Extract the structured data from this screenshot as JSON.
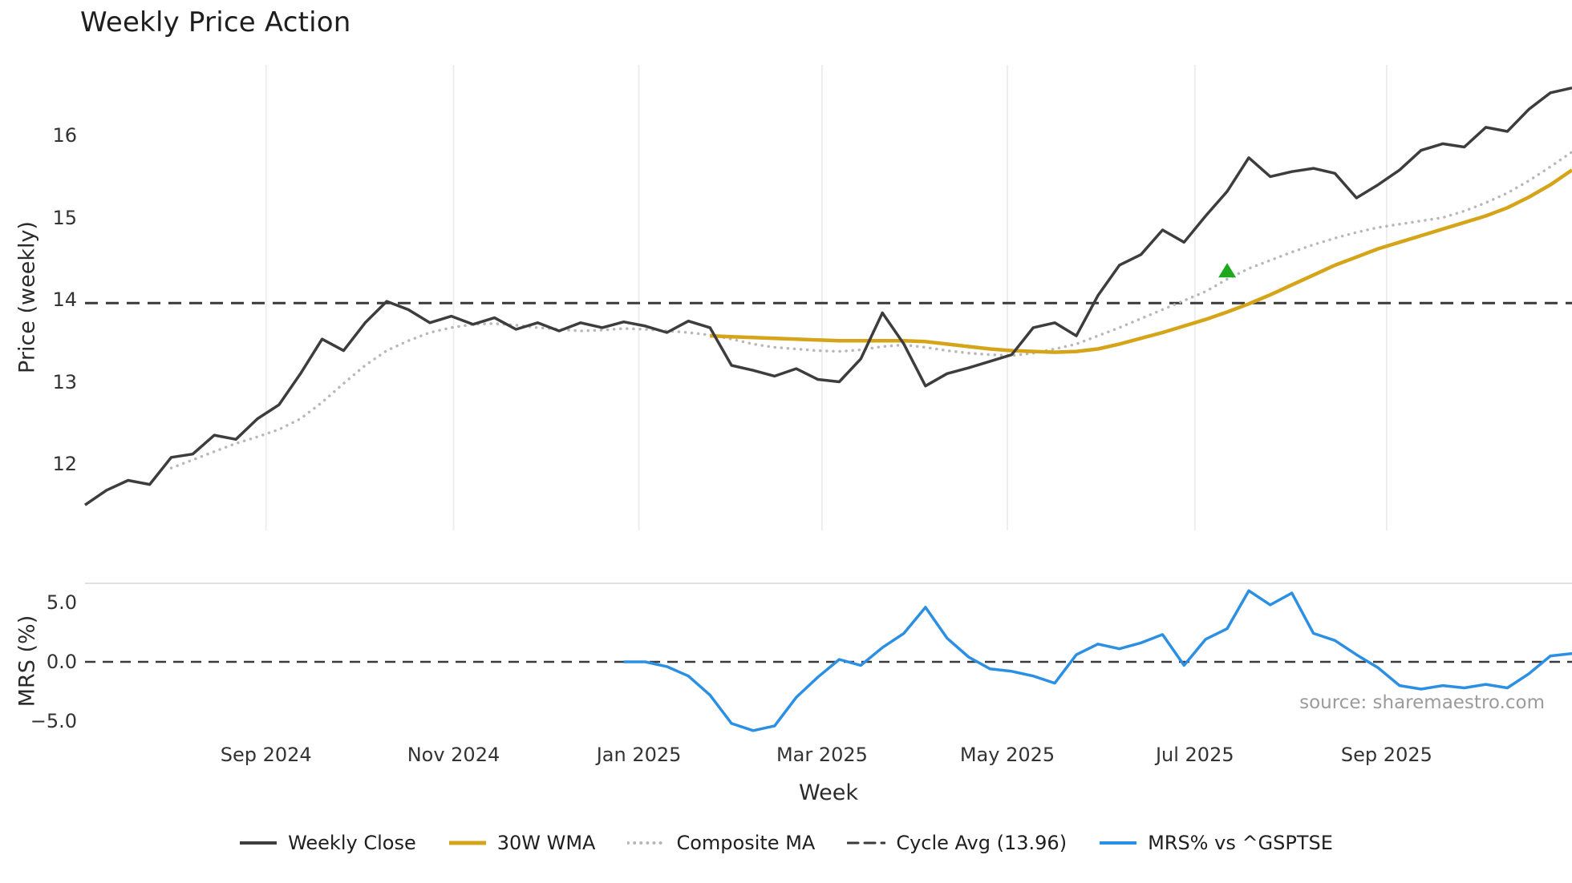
{
  "title": "Weekly Price Action",
  "source_note": "source: sharemaestro.com",
  "legend": {
    "items": [
      {
        "label": "Weekly Close",
        "color": "#3d3d3d",
        "line_width": 4,
        "dash": ""
      },
      {
        "label": "30W WMA",
        "color": "#d5a419",
        "line_width": 5,
        "dash": ""
      },
      {
        "label": "Composite MA",
        "color": "#b8b8b8",
        "line_width": 4,
        "dash": "0.1 8"
      },
      {
        "label": "Cycle Avg (13.96)",
        "color": "#3a3a3a",
        "line_width": 3,
        "dash": "13 8"
      },
      {
        "label": "MRS% vs ^GSPTSE",
        "color": "#2b8fe3",
        "line_width": 4,
        "dash": ""
      }
    ]
  },
  "chart_data": [
    {
      "type": "line",
      "panel": "price",
      "title": "Weekly Price Action",
      "xlabel": "Week",
      "ylabel": "Price (weekly)",
      "ylim": [
        11.19,
        16.86
      ],
      "yticks": [
        16,
        15,
        14,
        13,
        12
      ],
      "grid": "vertical-light",
      "x_unit": "week-index",
      "n_weeks": 70,
      "x_tick_labels": [
        "Sep 2024",
        "Nov 2024",
        "Jan 2025",
        "Mar 2025",
        "May 2025",
        "Jul 2025",
        "Sep 2025"
      ],
      "x_tick_positions": [
        8.4,
        17.1,
        25.7,
        34.2,
        42.8,
        51.5,
        60.4
      ],
      "series": [
        {
          "id": "weekly-close",
          "name": "Weekly Close",
          "color": "#3d3d3d",
          "line_width": 3.5,
          "dash": "",
          "values": [
            11.5,
            11.68,
            11.8,
            11.75,
            12.08,
            12.12,
            12.35,
            12.3,
            12.55,
            12.72,
            13.1,
            13.52,
            13.38,
            13.72,
            13.98,
            13.88,
            13.72,
            13.8,
            13.7,
            13.78,
            13.64,
            13.72,
            13.62,
            13.72,
            13.66,
            13.73,
            13.68,
            13.6,
            13.74,
            13.66,
            13.2,
            13.14,
            13.07,
            13.16,
            13.03,
            13.0,
            13.28,
            13.84,
            13.46,
            12.95,
            13.1,
            13.17,
            13.25,
            13.33,
            13.66,
            13.72,
            13.56,
            14.05,
            14.42,
            14.55,
            14.85,
            14.7,
            15.02,
            15.32,
            15.73,
            15.5,
            15.56,
            15.6,
            15.54,
            15.24,
            15.4,
            15.58,
            15.82,
            15.9,
            15.86,
            16.1,
            16.05,
            16.32,
            16.52,
            16.58
          ]
        },
        {
          "id": "wma-30w",
          "name": "30W WMA",
          "color": "#d5a419",
          "line_width": 4.5,
          "dash": "",
          "values": [
            null,
            null,
            null,
            null,
            null,
            null,
            null,
            null,
            null,
            null,
            null,
            null,
            null,
            null,
            null,
            null,
            null,
            null,
            null,
            null,
            null,
            null,
            null,
            null,
            null,
            null,
            null,
            null,
            null,
            13.56,
            13.55,
            13.54,
            13.53,
            13.52,
            13.51,
            13.5,
            13.5,
            13.5,
            13.5,
            13.49,
            13.46,
            13.43,
            13.4,
            13.38,
            13.37,
            13.36,
            13.37,
            13.4,
            13.46,
            13.53,
            13.6,
            13.68,
            13.76,
            13.85,
            13.95,
            14.06,
            14.18,
            14.3,
            14.42,
            14.52,
            14.62,
            14.7,
            14.78,
            14.86,
            14.94,
            15.02,
            15.12,
            15.25,
            15.4,
            15.58
          ]
        },
        {
          "id": "composite-ma",
          "name": "Composite MA",
          "color": "#b8b8b8",
          "line_width": 3.5,
          "dash": "0.1 8",
          "values": [
            null,
            null,
            null,
            null,
            11.95,
            12.05,
            12.15,
            12.25,
            12.33,
            12.42,
            12.55,
            12.75,
            12.98,
            13.2,
            13.38,
            13.5,
            13.6,
            13.66,
            13.7,
            13.71,
            13.69,
            13.66,
            13.64,
            13.62,
            13.63,
            13.65,
            13.64,
            13.62,
            13.6,
            13.57,
            13.52,
            13.46,
            13.42,
            13.4,
            13.38,
            13.37,
            13.39,
            13.43,
            13.45,
            13.42,
            13.38,
            13.35,
            13.33,
            13.32,
            13.35,
            13.4,
            13.46,
            13.56,
            13.66,
            13.77,
            13.88,
            13.99,
            14.1,
            14.25,
            14.38,
            14.48,
            14.58,
            14.67,
            14.75,
            14.82,
            14.88,
            14.92,
            14.96,
            15.0,
            15.08,
            15.18,
            15.3,
            15.45,
            15.62,
            15.8
          ]
        }
      ],
      "cycle_avg": {
        "name": "Cycle Avg (13.96)",
        "value": 13.96,
        "color": "#3a3a3a",
        "dash": "16 10",
        "line_width": 3
      },
      "marker": {
        "name": "signal-triangle",
        "shape": "triangle-up",
        "color": "#1ea81e",
        "week": 53,
        "value": 14.35
      }
    },
    {
      "type": "line",
      "panel": "mrs",
      "ylabel": "MRS (%)",
      "ylim": [
        -6.49,
        6.62
      ],
      "yticks": [
        5.0,
        0.0,
        -5.0
      ],
      "zero_line": {
        "value": 0,
        "color": "#3a3a3a",
        "dash": "13 9",
        "line_width": 2.5
      },
      "series": [
        {
          "id": "mrs-pct",
          "name": "MRS% vs ^GSPTSE",
          "color": "#2b8fe3",
          "line_width": 3.5,
          "dash": "",
          "values": [
            null,
            null,
            null,
            null,
            null,
            null,
            null,
            null,
            null,
            null,
            null,
            null,
            null,
            null,
            null,
            null,
            null,
            null,
            null,
            null,
            null,
            null,
            null,
            null,
            null,
            0.0,
            0.0,
            -0.4,
            -1.2,
            -2.8,
            -5.2,
            -5.8,
            -5.4,
            -3.0,
            -1.3,
            0.2,
            -0.3,
            1.2,
            2.4,
            4.6,
            2.0,
            0.4,
            -0.6,
            -0.8,
            -1.2,
            -1.8,
            0.6,
            1.5,
            1.1,
            1.6,
            2.3,
            -0.3,
            1.9,
            2.8,
            6.0,
            4.8,
            5.8,
            2.4,
            1.8,
            0.6,
            -0.5,
            -2.0,
            -2.3,
            -2.0,
            -2.2,
            -1.9,
            -2.2,
            -1.0,
            0.5,
            0.7
          ]
        }
      ]
    }
  ]
}
